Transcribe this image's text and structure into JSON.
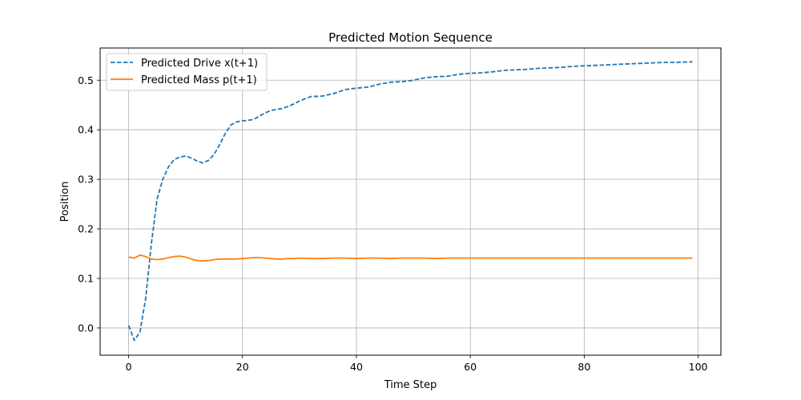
{
  "chart_data": {
    "type": "line",
    "title": "Predicted Motion Sequence",
    "xlabel": "Time Step",
    "ylabel": "Position",
    "xlim": [
      -5,
      104
    ],
    "ylim": [
      -0.055,
      0.565
    ],
    "xticks": [
      0,
      20,
      40,
      60,
      80,
      100
    ],
    "yticks": [
      0.0,
      0.1,
      0.2,
      0.3,
      0.4,
      0.5
    ],
    "xtick_labels": [
      "0",
      "20",
      "40",
      "60",
      "80",
      "100"
    ],
    "ytick_labels": [
      "0.0",
      "0.1",
      "0.2",
      "0.3",
      "0.4",
      "0.5"
    ],
    "grid": true,
    "legend_position": "upper-left",
    "series": [
      {
        "name": "Predicted Drive x(t+1)",
        "color": "#1f77b4",
        "style": "dashed",
        "x": [
          0,
          1,
          2,
          3,
          4,
          5,
          6,
          7,
          8,
          9,
          10,
          11,
          12,
          13,
          14,
          15,
          16,
          17,
          18,
          19,
          20,
          21,
          22,
          23,
          24,
          25,
          26,
          27,
          28,
          29,
          30,
          32,
          34,
          36,
          38,
          40,
          42,
          44,
          46,
          48,
          50,
          52,
          54,
          56,
          58,
          60,
          62,
          64,
          66,
          68,
          70,
          72,
          74,
          76,
          78,
          80,
          82,
          84,
          86,
          88,
          90,
          92,
          94,
          96,
          99
        ],
        "y": [
          0.005,
          -0.025,
          -0.008,
          0.06,
          0.17,
          0.26,
          0.3,
          0.325,
          0.34,
          0.345,
          0.347,
          0.343,
          0.337,
          0.333,
          0.338,
          0.35,
          0.37,
          0.393,
          0.41,
          0.416,
          0.418,
          0.419,
          0.421,
          0.428,
          0.434,
          0.439,
          0.441,
          0.443,
          0.447,
          0.452,
          0.458,
          0.467,
          0.468,
          0.473,
          0.481,
          0.484,
          0.486,
          0.492,
          0.496,
          0.497,
          0.5,
          0.505,
          0.507,
          0.508,
          0.512,
          0.514,
          0.515,
          0.517,
          0.52,
          0.521,
          0.522,
          0.524,
          0.525,
          0.526,
          0.528,
          0.529,
          0.53,
          0.531,
          0.532,
          0.533,
          0.534,
          0.535,
          0.536,
          0.536,
          0.537
        ]
      },
      {
        "name": "Predicted Mass p(t+1)",
        "color": "#ff7f0e",
        "style": "solid",
        "x": [
          0,
          1,
          2,
          3,
          4,
          5,
          6,
          7,
          8,
          9,
          10,
          11,
          12,
          13,
          14,
          15,
          16,
          17,
          18,
          19,
          20,
          21,
          22,
          23,
          24,
          25,
          26,
          27,
          28,
          29,
          30,
          32,
          34,
          36,
          38,
          40,
          42,
          44,
          46,
          48,
          50,
          52,
          54,
          56,
          58,
          60,
          62,
          64,
          66,
          68,
          70,
          72,
          74,
          76,
          78,
          80,
          82,
          84,
          86,
          88,
          90,
          92,
          94,
          96,
          99
        ],
        "y": [
          0.143,
          0.141,
          0.147,
          0.144,
          0.139,
          0.138,
          0.139,
          0.142,
          0.144,
          0.145,
          0.143,
          0.139,
          0.136,
          0.135,
          0.136,
          0.138,
          0.139,
          0.139,
          0.139,
          0.139,
          0.14,
          0.141,
          0.142,
          0.142,
          0.141,
          0.14,
          0.139,
          0.139,
          0.14,
          0.14,
          0.141,
          0.14,
          0.14,
          0.141,
          0.141,
          0.14,
          0.141,
          0.141,
          0.14,
          0.141,
          0.141,
          0.141,
          0.14,
          0.141,
          0.141,
          0.141,
          0.141,
          0.141,
          0.141,
          0.141,
          0.141,
          0.141,
          0.141,
          0.141,
          0.141,
          0.141,
          0.141,
          0.141,
          0.141,
          0.141,
          0.141,
          0.141,
          0.141,
          0.141,
          0.141
        ]
      }
    ]
  }
}
